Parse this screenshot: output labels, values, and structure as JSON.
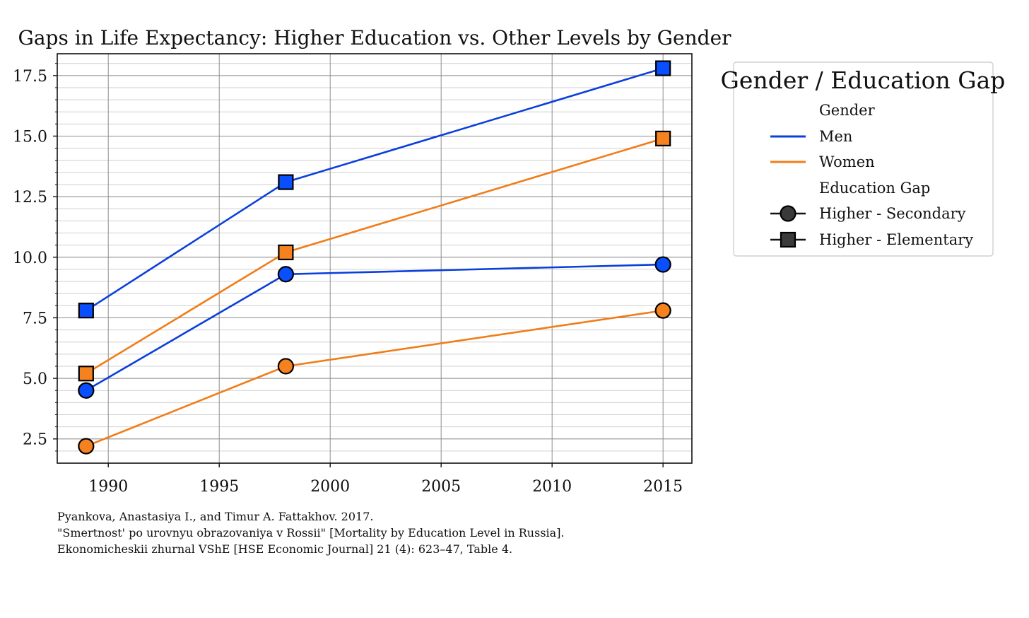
{
  "chart_data": {
    "type": "line",
    "title": "Gaps in Life Expectancy: Higher Education vs. Other Levels by Gender",
    "xlabel": "",
    "ylabel": "",
    "x": [
      1989,
      1998,
      2015
    ],
    "xlim": [
      1987.7,
      2016.3
    ],
    "ylim": [
      1.5,
      18.4
    ],
    "xticks": [
      1990,
      1995,
      2000,
      2005,
      2010,
      2015
    ],
    "xtick_labels": [
      "1990",
      "1995",
      "2000",
      "2005",
      "2010",
      "2015"
    ],
    "yticks": [
      2.5,
      5.0,
      7.5,
      10.0,
      12.5,
      15.0,
      17.5
    ],
    "ytick_labels": [
      "2.5",
      "5.0",
      "7.5",
      "10.0",
      "12.5",
      "15.0",
      "17.5"
    ],
    "grid": true,
    "series": [
      {
        "name": "Men · Higher - Elementary",
        "gender": "Men",
        "gap": "Higher - Elementary",
        "marker": "square",
        "color": "#0a3fdc",
        "fill": "#0a4fff",
        "values": [
          7.8,
          13.1,
          17.8
        ]
      },
      {
        "name": "Women · Higher - Elementary",
        "gender": "Women",
        "gap": "Higher - Elementary",
        "marker": "square",
        "color": "#f07d18",
        "fill": "#f5821e",
        "values": [
          5.2,
          10.2,
          14.9
        ]
      },
      {
        "name": "Men · Higher - Secondary",
        "gender": "Men",
        "gap": "Higher - Secondary",
        "marker": "circle",
        "color": "#0a3fdc",
        "fill": "#0a4fff",
        "values": [
          4.5,
          9.3,
          9.7
        ]
      },
      {
        "name": "Women · Higher - Secondary",
        "gender": "Women",
        "gap": "Higher - Secondary",
        "marker": "circle",
        "color": "#f07d18",
        "fill": "#f5821e",
        "values": [
          2.2,
          5.5,
          7.8
        ]
      }
    ],
    "legend": {
      "title": "Gender / Education Gap",
      "placement": "outside-right-top",
      "gender_heading": "Gender",
      "gender_items": [
        {
          "label": "Men",
          "color": "#0a3fdc"
        },
        {
          "label": "Women",
          "color": "#f07d18"
        }
      ],
      "gap_heading": "Education Gap",
      "gap_items": [
        {
          "label": "Higher - Secondary",
          "marker": "circle"
        },
        {
          "label": "Higher - Elementary",
          "marker": "square"
        }
      ]
    },
    "source_lines": [
      "Pyankova, Anastasiya I., and Timur A. Fattakhov. 2017.",
      "\"Smertnost' po urovnyu obrazovaniya v Rossii\" [Mortality by Education Level in Russia].",
      "Ekonomicheskii zhurnal VShE [HSE Economic Journal] 21 (4): 623–47, Table 4."
    ]
  }
}
